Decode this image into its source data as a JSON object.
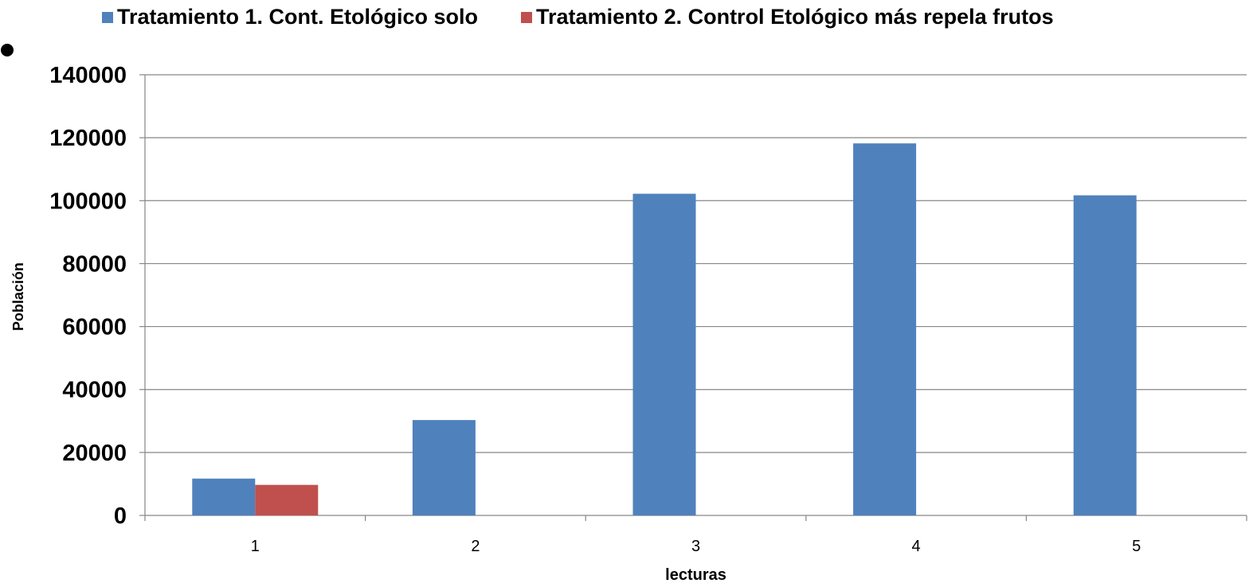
{
  "chart_data": {
    "type": "bar",
    "categories": [
      "1",
      "2",
      "3",
      "4",
      "5"
    ],
    "series": [
      {
        "name": "Tratamiento 1.  Cont. Etológico solo",
        "color": "#4F81BD",
        "values": [
          11700,
          30300,
          102200,
          118200,
          101700
        ]
      },
      {
        "name": "Tratamiento 2.  Control Etológico más repela frutos",
        "color": "#C0504D",
        "values": [
          9700,
          0,
          0,
          0,
          0
        ]
      }
    ],
    "y_ticks": [
      "0",
      "20000",
      "40000",
      "60000",
      "80000",
      "100000",
      "120000",
      "140000"
    ],
    "ylim": [
      0,
      140000
    ],
    "xlabel": "lecturas",
    "ylabel": "Población",
    "grid": true,
    "legend_position": "top"
  }
}
